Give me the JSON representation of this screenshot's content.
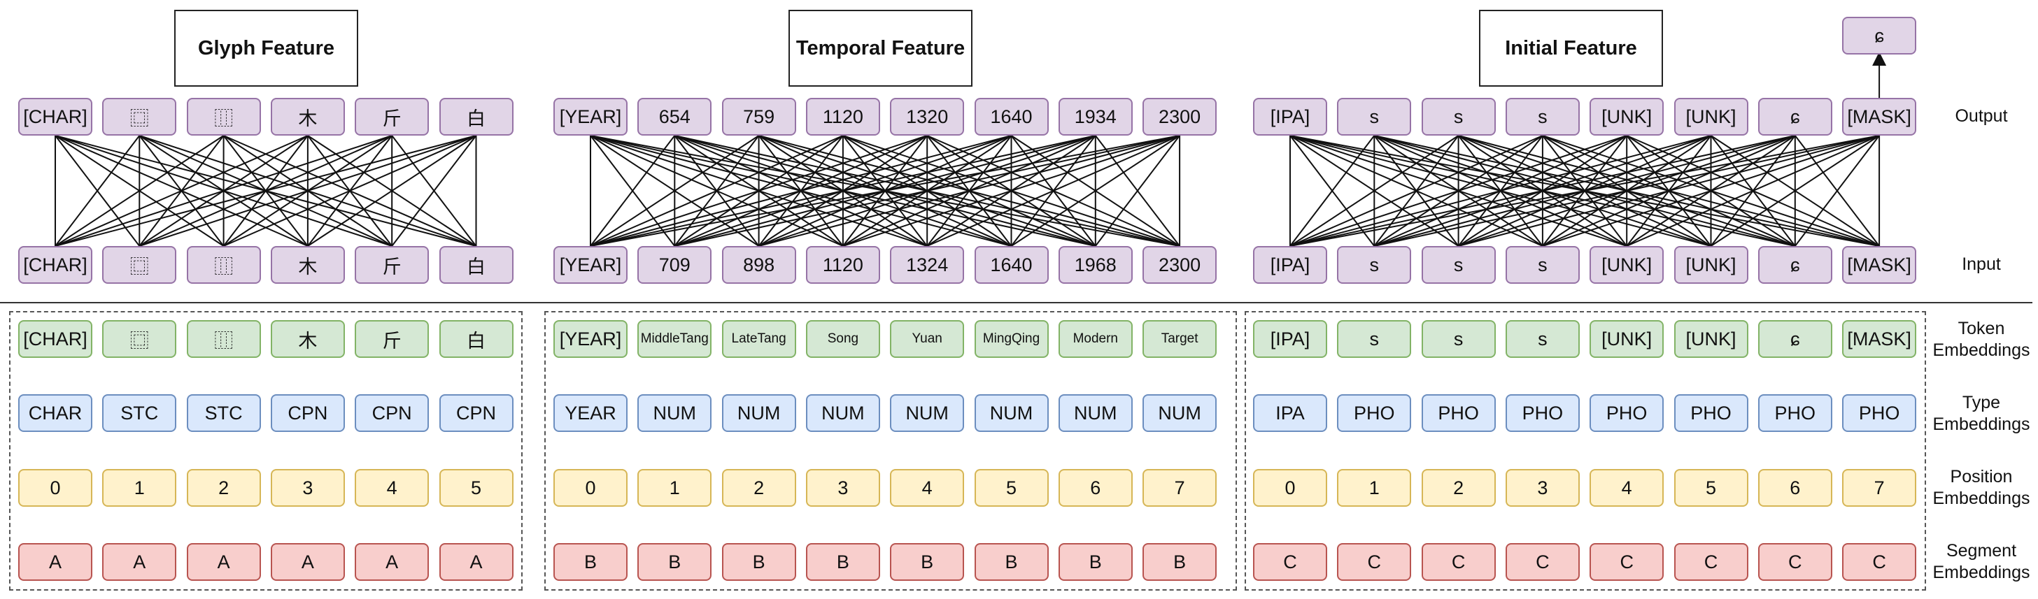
{
  "titles": [
    "Glyph Feature",
    "Temporal Feature",
    "Initial Feature"
  ],
  "row_labels": {
    "output": "Output",
    "input": "Input",
    "token": "Token\nEmbeddings",
    "type": "Type\nEmbeddings",
    "position": "Position\nEmbeddings",
    "segment": "Segment\nEmbeddings"
  },
  "groups": [
    {
      "name": "glyph",
      "output": [
        "[CHAR]",
        "⿴",
        "⿲",
        "木",
        "斤",
        "白"
      ],
      "input": [
        "[CHAR]",
        "⿴",
        "⿲",
        "木",
        "斤",
        "白"
      ],
      "token": [
        "[CHAR]",
        "⿴",
        "⿲",
        "木",
        "斤",
        "白"
      ],
      "type": [
        "CHAR",
        "STC",
        "STC",
        "CPN",
        "CPN",
        "CPN"
      ],
      "position": [
        "0",
        "1",
        "2",
        "3",
        "4",
        "5"
      ],
      "segment": [
        "A",
        "A",
        "A",
        "A",
        "A",
        "A"
      ]
    },
    {
      "name": "temporal",
      "output": [
        "[YEAR]",
        "654",
        "759",
        "1120",
        "1320",
        "1640",
        "1934",
        "2300"
      ],
      "input": [
        "[YEAR]",
        "709",
        "898",
        "1120",
        "1324",
        "1640",
        "1968",
        "2300"
      ],
      "token": [
        "[YEAR]",
        "MiddleTang",
        "LateTang",
        "Song",
        "Yuan",
        "MingQing",
        "Modern",
        "Target"
      ],
      "type": [
        "YEAR",
        "NUM",
        "NUM",
        "NUM",
        "NUM",
        "NUM",
        "NUM",
        "NUM"
      ],
      "position": [
        "0",
        "1",
        "2",
        "3",
        "4",
        "5",
        "6",
        "7"
      ],
      "segment": [
        "B",
        "B",
        "B",
        "B",
        "B",
        "B",
        "B",
        "B"
      ]
    },
    {
      "name": "initial",
      "output": [
        "[IPA]",
        "s",
        "s",
        "s",
        "[UNK]",
        "[UNK]",
        "ɕ",
        "[MASK]"
      ],
      "input": [
        "[IPA]",
        "s",
        "s",
        "s",
        "[UNK]",
        "[UNK]",
        "ɕ",
        "[MASK]"
      ],
      "token": [
        "[IPA]",
        "s",
        "s",
        "s",
        "[UNK]",
        "[UNK]",
        "ɕ",
        "[MASK]"
      ],
      "type": [
        "IPA",
        "PHO",
        "PHO",
        "PHO",
        "PHO",
        "PHO",
        "PHO",
        "PHO"
      ],
      "position": [
        "0",
        "1",
        "2",
        "3",
        "4",
        "5",
        "6",
        "7"
      ],
      "segment": [
        "C",
        "C",
        "C",
        "C",
        "C",
        "C",
        "C",
        "C"
      ]
    }
  ],
  "prediction": "ɕ"
}
